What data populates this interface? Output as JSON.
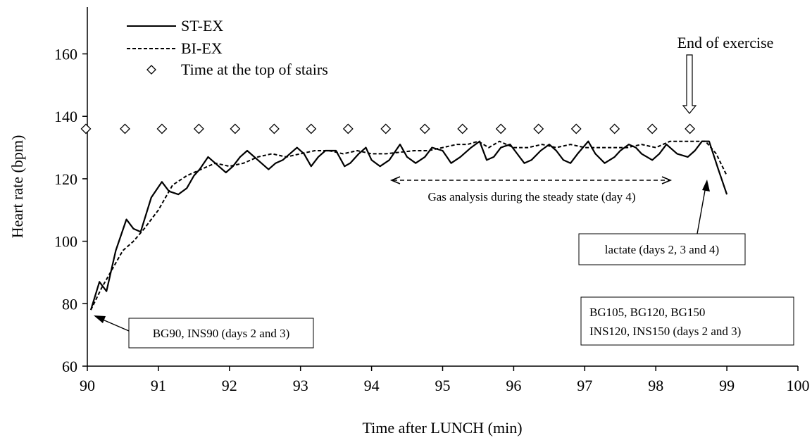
{
  "chart_data": {
    "type": "line",
    "xlabel": "Time after LUNCH (min)",
    "ylabel": "Heart rate (bpm)",
    "xlim": [
      90,
      100
    ],
    "ylim": [
      60,
      175
    ],
    "x_ticks": [
      "90",
      "91",
      "92",
      "93",
      "94",
      "95",
      "96",
      "97",
      "98",
      "99",
      "100"
    ],
    "y_ticks": [
      "60",
      "80",
      "100",
      "120",
      "140",
      "160"
    ],
    "grid": false,
    "legend_position": "top-left",
    "series": [
      {
        "name": "ST-EX",
        "style": "solid",
        "color": "#000000",
        "x": [
          90.05,
          90.17,
          90.27,
          90.4,
          90.55,
          90.65,
          90.75,
          90.9,
          91.05,
          91.15,
          91.28,
          91.4,
          91.5,
          91.58,
          91.7,
          91.85,
          91.95,
          92.05,
          92.15,
          92.25,
          92.4,
          92.55,
          92.65,
          92.75,
          92.85,
          92.95,
          93.05,
          93.15,
          93.25,
          93.35,
          93.5,
          93.62,
          93.7,
          93.82,
          93.92,
          94.0,
          94.12,
          94.25,
          94.4,
          94.5,
          94.62,
          94.75,
          94.85,
          95.0,
          95.12,
          95.25,
          95.4,
          95.52,
          95.62,
          95.72,
          95.82,
          95.95,
          96.05,
          96.15,
          96.25,
          96.38,
          96.5,
          96.6,
          96.7,
          96.8,
          96.9,
          97.05,
          97.15,
          97.28,
          97.42,
          97.5,
          97.62,
          97.72,
          97.8,
          97.95,
          98.05,
          98.15,
          98.3,
          98.45,
          98.55,
          98.65,
          98.75,
          98.88,
          99.0
        ],
        "y": [
          78,
          87,
          84,
          97,
          107,
          104,
          103,
          114,
          119,
          116,
          115,
          117,
          121,
          123,
          127,
          124,
          122,
          124,
          127,
          129,
          126,
          123,
          125,
          126,
          128,
          130,
          128,
          124,
          127,
          129,
          129,
          124,
          125,
          128,
          130,
          126,
          124,
          126,
          131,
          127,
          125,
          127,
          130,
          129,
          125,
          127,
          130,
          132,
          126,
          127,
          130,
          131,
          128,
          125,
          126,
          129,
          131,
          129,
          126,
          125,
          128,
          132,
          128,
          125,
          127,
          129,
          131,
          130,
          128,
          126,
          128,
          131,
          128,
          127,
          129,
          132,
          132,
          123,
          115
        ]
      },
      {
        "name": "BI-EX",
        "style": "dashed",
        "color": "#000000",
        "x": [
          90.05,
          90.2,
          90.35,
          90.5,
          90.65,
          90.8,
          91.0,
          91.2,
          91.4,
          91.6,
          91.8,
          92.0,
          92.2,
          92.4,
          92.6,
          92.8,
          93.0,
          93.2,
          93.4,
          93.6,
          93.8,
          94.0,
          94.2,
          94.4,
          94.6,
          94.8,
          95.0,
          95.2,
          95.35,
          95.5,
          95.65,
          95.8,
          96.0,
          96.2,
          96.4,
          96.6,
          96.8,
          97.0,
          97.2,
          97.4,
          97.6,
          97.8,
          98.0,
          98.2,
          98.4,
          98.55,
          98.7,
          98.85,
          99.0
        ],
        "y": [
          78,
          85,
          91,
          97,
          100,
          104,
          110,
          118,
          121,
          123,
          125,
          124,
          125,
          127,
          128,
          127,
          128,
          129,
          129,
          128,
          129,
          128,
          128,
          128.5,
          129,
          129,
          130,
          131,
          131,
          132,
          130,
          132,
          130,
          130,
          131,
          130,
          131,
          130,
          130,
          130,
          130,
          131,
          130,
          132,
          132,
          132,
          132,
          128,
          121
        ]
      },
      {
        "name": "Time at the top of stairs",
        "style": "marker-diamond",
        "color": "#000000",
        "x": [
          89.98,
          90.53,
          91.05,
          91.57,
          92.08,
          92.63,
          93.15,
          93.67,
          94.2,
          94.75,
          95.28,
          95.82,
          96.35,
          96.88,
          97.42,
          97.95,
          98.48
        ],
        "y": [
          136,
          136,
          136,
          136,
          136,
          136,
          136,
          136,
          136,
          136,
          136,
          136,
          136,
          136,
          136,
          136,
          136
        ]
      }
    ],
    "annotations": {
      "end_exercise": "End of exercise",
      "gas_analysis": "Gas analysis during the steady state (day 4)",
      "lactate": "lactate (days 2, 3 and 4)",
      "bg90": "BG90, INS90 (days 2 and 3)",
      "bg105_line1": "BG105, BG120, BG150",
      "bg105_line2": "INS120, INS150 (days 2 and 3)"
    }
  }
}
